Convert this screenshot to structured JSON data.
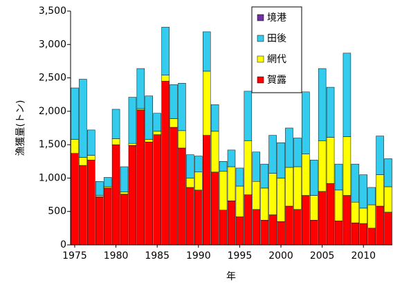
{
  "chart_data": {
    "type": "stacked_bar",
    "y_label": "漁獲量(トン)",
    "x_label": "年",
    "x": [
      1975,
      1976,
      1977,
      1978,
      1979,
      1980,
      1981,
      1982,
      1983,
      1984,
      1985,
      1986,
      1987,
      1988,
      1989,
      1990,
      1991,
      1992,
      1993,
      1994,
      1995,
      1996,
      1997,
      1998,
      1999,
      2000,
      2001,
      2002,
      2003,
      2004,
      2005,
      2006,
      2007,
      2008,
      2009,
      2010,
      2011,
      2012,
      2013
    ],
    "series": [
      {
        "name": "賀露",
        "color": "#ff0000",
        "values": [
          1370,
          1190,
          1270,
          720,
          850,
          1500,
          760,
          1490,
          2020,
          1540,
          1650,
          2450,
          1760,
          1450,
          860,
          820,
          1640,
          1090,
          520,
          660,
          420,
          750,
          530,
          370,
          450,
          350,
          580,
          530,
          740,
          370,
          800,
          920,
          360,
          740,
          330,
          320,
          250,
          580,
          490
        ]
      },
      {
        "name": "網代",
        "color": "#ffff00",
        "values": [
          210,
          120,
          70,
          20,
          20,
          90,
          30,
          30,
          20,
          40,
          50,
          90,
          130,
          260,
          140,
          270,
          960,
          610,
          580,
          510,
          460,
          810,
          420,
          480,
          620,
          650,
          580,
          640,
          620,
          370,
          760,
          690,
          460,
          880,
          310,
          230,
          350,
          470,
          380
        ]
      },
      {
        "name": "田後",
        "color": "#33ccee",
        "values": [
          770,
          1170,
          380,
          210,
          140,
          440,
          380,
          690,
          600,
          650,
          270,
          720,
          510,
          710,
          350,
          240,
          590,
          400,
          150,
          250,
          270,
          740,
          440,
          360,
          570,
          530,
          590,
          430,
          930,
          530,
          1080,
          750,
          390,
          1250,
          570,
          500,
          260,
          580,
          420
        ]
      },
      {
        "name": "境港",
        "color": "#7030a0",
        "values": [
          0,
          0,
          0,
          0,
          0,
          0,
          0,
          0,
          0,
          0,
          0,
          0,
          0,
          0,
          0,
          0,
          0,
          0,
          0,
          0,
          0,
          0,
          0,
          0,
          0,
          0,
          0,
          0,
          0,
          0,
          0,
          0,
          0,
          0,
          0,
          0,
          0,
          0,
          0
        ]
      }
    ],
    "xlim": [
      1974.5,
      2013.5
    ],
    "xticks": [
      1975,
      1980,
      1985,
      1990,
      1995,
      2000,
      2005,
      2010
    ],
    "ylim": [
      0,
      3500
    ],
    "yticks": [
      0,
      500,
      {
        "value": 1000,
        "label": "1,000"
      },
      {
        "value": 1500,
        "label": "1,500"
      },
      {
        "value": 2000,
        "label": "2,000"
      },
      {
        "value": 2500,
        "label": "2,500"
      },
      {
        "value": 3000,
        "label": "3,000"
      },
      {
        "value": 3500,
        "label": "3,500"
      }
    ],
    "grid": false,
    "legend": "upper-right"
  }
}
